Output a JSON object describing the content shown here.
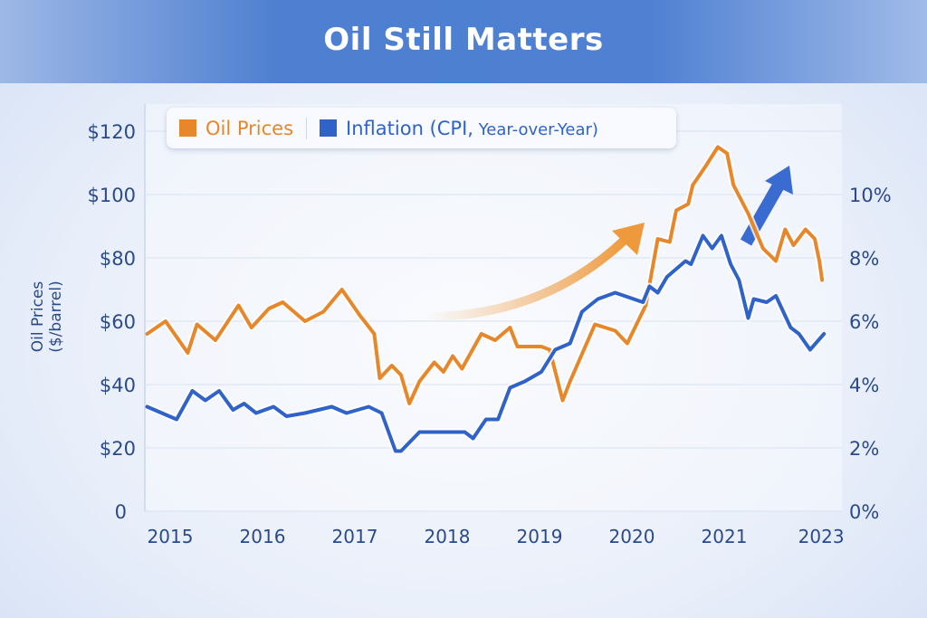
{
  "chart_data": {
    "type": "line",
    "title": "Oil Still Matters",
    "ylabel": "Oil Prices ($/barrel)",
    "ylim": [
      0,
      120
    ],
    "y2lim": [
      0,
      12
    ],
    "yticks": [
      "0",
      "$20",
      "$40",
      "$60",
      "$80",
      "$100",
      "$120"
    ],
    "y2ticks": [
      "0%",
      "2%",
      "4%",
      "6%",
      "8%",
      "10%"
    ],
    "xticks": [
      {
        "label": "2015",
        "x": 2015
      },
      {
        "label": "2016",
        "x": 2016
      },
      {
        "label": "2017",
        "x": 2017
      },
      {
        "label": "2018",
        "x": 2018
      },
      {
        "label": "2019",
        "x": 2019
      },
      {
        "label": "2020",
        "x": 2020
      },
      {
        "label": "2021",
        "x": 2021
      },
      {
        "label": "2023",
        "x": 2022.05
      }
    ],
    "xlim": [
      2014.72,
      2022.2
    ],
    "grid": true,
    "legend_placement": "top-left",
    "legend": {
      "oil": "Oil Prices",
      "inflation_a": "Inflation (CPI,",
      "inflation_b": " Year-over-Year)"
    },
    "colors": {
      "oil": "#e8862a",
      "inflation": "#2f63c9",
      "text": "#2b4a8a"
    },
    "series": [
      {
        "name": "Oil Prices",
        "axis": "left",
        "points": [
          [
            2014.75,
            56
          ],
          [
            2014.95,
            60
          ],
          [
            2015.19,
            50
          ],
          [
            2015.29,
            59
          ],
          [
            2015.49,
            54
          ],
          [
            2015.74,
            65
          ],
          [
            2015.88,
            58
          ],
          [
            2016.07,
            64
          ],
          [
            2016.22,
            66
          ],
          [
            2016.46,
            60
          ],
          [
            2016.66,
            63
          ],
          [
            2016.86,
            70
          ],
          [
            2017.05,
            62
          ],
          [
            2017.21,
            56
          ],
          [
            2017.27,
            42
          ],
          [
            2017.4,
            46
          ],
          [
            2017.5,
            43
          ],
          [
            2017.59,
            34
          ],
          [
            2017.7,
            41
          ],
          [
            2017.86,
            47
          ],
          [
            2017.96,
            44
          ],
          [
            2018.06,
            49
          ],
          [
            2018.16,
            45
          ],
          [
            2018.37,
            56
          ],
          [
            2018.52,
            54
          ],
          [
            2018.68,
            58
          ],
          [
            2018.76,
            52
          ],
          [
            2019.02,
            52
          ],
          [
            2019.11,
            51
          ],
          [
            2019.25,
            35
          ],
          [
            2019.33,
            41
          ],
          [
            2019.6,
            59
          ],
          [
            2019.82,
            57
          ],
          [
            2019.95,
            53
          ],
          [
            2020.05,
            59
          ],
          [
            2020.15,
            65
          ],
          [
            2020.28,
            86
          ],
          [
            2020.41,
            85
          ],
          [
            2020.48,
            95
          ],
          [
            2020.61,
            97
          ],
          [
            2020.66,
            103
          ],
          [
            2020.8,
            109
          ],
          [
            2020.93,
            115
          ],
          [
            2021.03,
            113
          ],
          [
            2021.1,
            103
          ],
          [
            2021.26,
            94
          ],
          [
            2021.42,
            83
          ],
          [
            2021.56,
            79
          ],
          [
            2021.66,
            89
          ],
          [
            2021.75,
            84
          ],
          [
            2021.88,
            89
          ],
          [
            2021.98,
            86
          ],
          [
            2022.03,
            79
          ],
          [
            2022.06,
            73
          ]
        ]
      },
      {
        "name": "Inflation (CPI, Year-over-Year)",
        "axis": "right",
        "points": [
          [
            2014.75,
            3.3
          ],
          [
            2015.07,
            2.9
          ],
          [
            2015.24,
            3.8
          ],
          [
            2015.38,
            3.5
          ],
          [
            2015.53,
            3.8
          ],
          [
            2015.68,
            3.2
          ],
          [
            2015.8,
            3.4
          ],
          [
            2015.93,
            3.1
          ],
          [
            2016.12,
            3.3
          ],
          [
            2016.26,
            3.0
          ],
          [
            2016.46,
            3.1
          ],
          [
            2016.75,
            3.3
          ],
          [
            2016.91,
            3.1
          ],
          [
            2017.15,
            3.3
          ],
          [
            2017.29,
            3.1
          ],
          [
            2017.44,
            1.9
          ],
          [
            2017.5,
            1.9
          ],
          [
            2017.7,
            2.5
          ],
          [
            2017.96,
            2.5
          ],
          [
            2018.19,
            2.5
          ],
          [
            2018.28,
            2.3
          ],
          [
            2018.42,
            2.9
          ],
          [
            2018.55,
            2.9
          ],
          [
            2018.68,
            3.9
          ],
          [
            2018.84,
            4.1
          ],
          [
            2019.02,
            4.4
          ],
          [
            2019.17,
            5.1
          ],
          [
            2019.33,
            5.3
          ],
          [
            2019.46,
            6.3
          ],
          [
            2019.63,
            6.7
          ],
          [
            2019.82,
            6.9
          ],
          [
            2020.02,
            6.7
          ],
          [
            2020.12,
            6.6
          ],
          [
            2020.19,
            7.1
          ],
          [
            2020.28,
            6.9
          ],
          [
            2020.38,
            7.4
          ],
          [
            2020.58,
            7.9
          ],
          [
            2020.64,
            7.8
          ],
          [
            2020.77,
            8.7
          ],
          [
            2020.87,
            8.3
          ],
          [
            2020.97,
            8.7
          ],
          [
            2021.07,
            7.8
          ],
          [
            2021.16,
            7.3
          ],
          [
            2021.26,
            6.1
          ],
          [
            2021.32,
            6.7
          ],
          [
            2021.46,
            6.6
          ],
          [
            2021.56,
            6.8
          ],
          [
            2021.72,
            5.8
          ],
          [
            2021.81,
            5.6
          ],
          [
            2021.93,
            5.1
          ],
          [
            2022.08,
            5.6
          ]
        ]
      }
    ]
  }
}
